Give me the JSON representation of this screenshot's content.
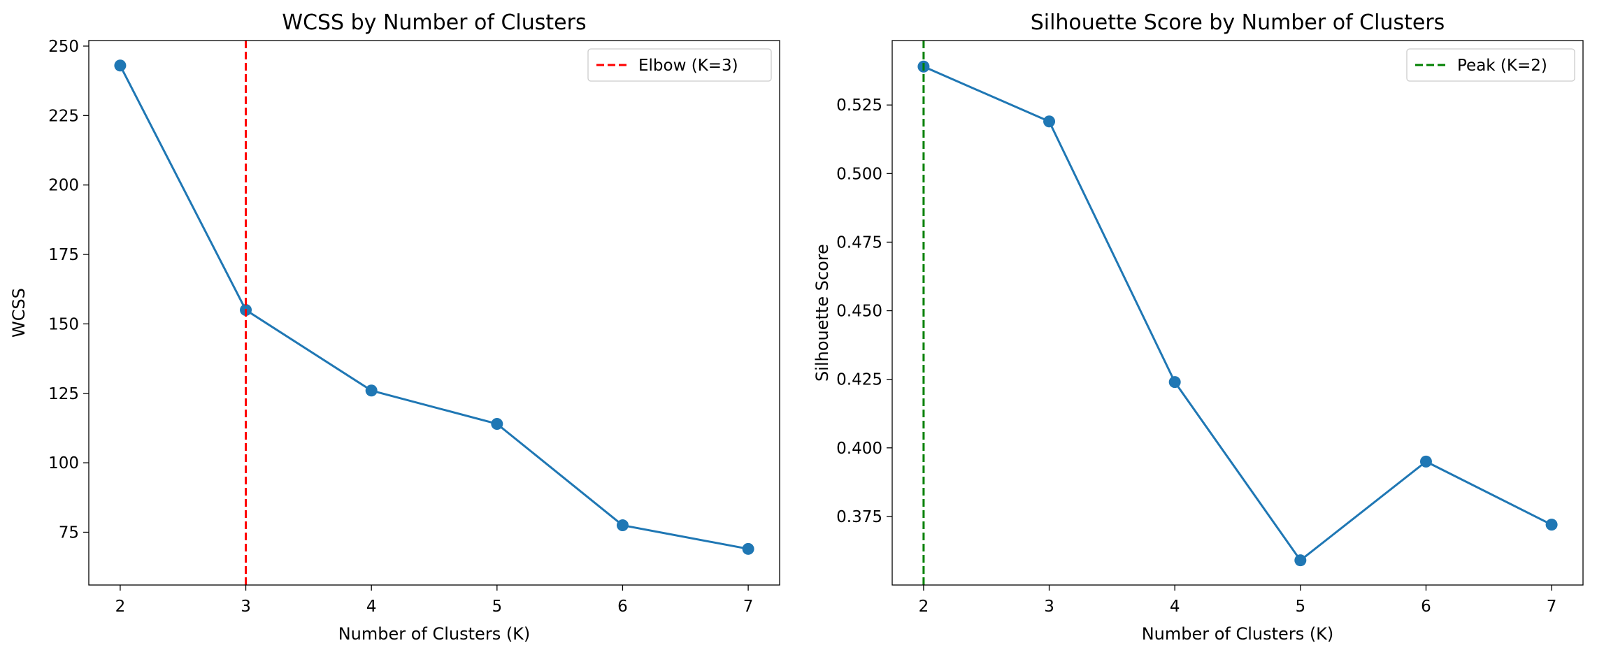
{
  "chart_data": [
    {
      "type": "line",
      "title": "WCSS by Number of Clusters",
      "xlabel": "Number of Clusters (K)",
      "ylabel": "WCSS",
      "x": [
        2,
        3,
        4,
        5,
        6,
        7
      ],
      "series": [
        {
          "name": "",
          "values": [
            243,
            155,
            126,
            114,
            77.5,
            69
          ],
          "color": "#1f77b4"
        }
      ],
      "xlim": [
        1.75,
        7.25
      ],
      "ylim": [
        56,
        252
      ],
      "xticks": [
        2,
        3,
        4,
        5,
        6,
        7
      ],
      "xtick_labels": [
        "2",
        "3",
        "4",
        "5",
        "6",
        "7"
      ],
      "yticks": [
        75,
        100,
        125,
        150,
        175,
        200,
        225,
        250
      ],
      "ytick_labels": [
        "75",
        "100",
        "125",
        "150",
        "175",
        "200",
        "225",
        "250"
      ],
      "reference_line": {
        "axis": "x",
        "value": 3,
        "label": "Elbow (K=3)",
        "color": "#ff0000",
        "style": "dashed"
      },
      "legend": "top-right",
      "grid": false
    },
    {
      "type": "line",
      "title": "Silhouette Score by Number of Clusters",
      "xlabel": "Number of Clusters (K)",
      "ylabel": "Silhouette Score",
      "x": [
        2,
        3,
        4,
        5,
        6,
        7
      ],
      "series": [
        {
          "name": "",
          "values": [
            0.539,
            0.519,
            0.424,
            0.359,
            0.395,
            0.372
          ],
          "color": "#1f77b4"
        }
      ],
      "xlim": [
        1.75,
        7.25
      ],
      "ylim": [
        0.35,
        0.5485
      ],
      "xticks": [
        2,
        3,
        4,
        5,
        6,
        7
      ],
      "xtick_labels": [
        "2",
        "3",
        "4",
        "5",
        "6",
        "7"
      ],
      "yticks": [
        0.375,
        0.4,
        0.425,
        0.45,
        0.475,
        0.5,
        0.525
      ],
      "ytick_labels": [
        "0.375",
        "0.400",
        "0.425",
        "0.450",
        "0.475",
        "0.500",
        "0.525"
      ],
      "reference_line": {
        "axis": "x",
        "value": 2,
        "label": "Peak (K=2)",
        "color": "#008000",
        "style": "dashed"
      },
      "legend": "top-right",
      "grid": false
    }
  ]
}
